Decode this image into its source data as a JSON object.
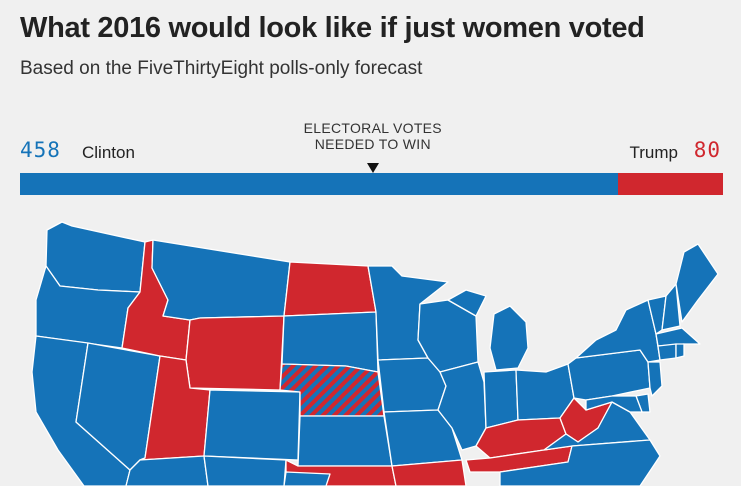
{
  "header": {
    "title": "What 2016 would look like if just women voted",
    "subtitle": "Based on the FiveThirtyEight polls-only forecast"
  },
  "electoral": {
    "needed_label_line1": "ELECTORAL VOTES",
    "needed_label_line2": "NEEDED TO WIN",
    "total": 538,
    "needed": 270,
    "clinton": {
      "name": "Clinton",
      "votes": "458",
      "color": "#1573b8"
    },
    "trump": {
      "name": "Trump",
      "votes": "80",
      "color": "#d0272e"
    }
  },
  "map": {
    "colors": {
      "clinton": "#1573b8",
      "trump": "#d0272e",
      "border": "#ffffff"
    },
    "states": [
      {
        "name": "WA",
        "winner": "clinton"
      },
      {
        "name": "OR",
        "winner": "clinton"
      },
      {
        "name": "CA",
        "winner": "clinton"
      },
      {
        "name": "NV",
        "winner": "clinton"
      },
      {
        "name": "ID",
        "winner": "trump"
      },
      {
        "name": "MT",
        "winner": "clinton"
      },
      {
        "name": "WY",
        "winner": "trump"
      },
      {
        "name": "UT",
        "winner": "trump"
      },
      {
        "name": "AZ",
        "winner": "clinton"
      },
      {
        "name": "CO",
        "winner": "clinton"
      },
      {
        "name": "NM",
        "winner": "clinton"
      },
      {
        "name": "ND",
        "winner": "trump"
      },
      {
        "name": "SD",
        "winner": "clinton"
      },
      {
        "name": "NE",
        "winner": "split"
      },
      {
        "name": "KS",
        "winner": "clinton"
      },
      {
        "name": "OK",
        "winner": "trump"
      },
      {
        "name": "TX",
        "winner": "clinton"
      },
      {
        "name": "MN",
        "winner": "clinton"
      },
      {
        "name": "IA",
        "winner": "clinton"
      },
      {
        "name": "MO",
        "winner": "clinton"
      },
      {
        "name": "AR",
        "winner": "trump"
      },
      {
        "name": "WI",
        "winner": "clinton"
      },
      {
        "name": "IL",
        "winner": "clinton"
      },
      {
        "name": "MI",
        "winner": "clinton"
      },
      {
        "name": "IN",
        "winner": "clinton"
      },
      {
        "name": "OH",
        "winner": "clinton"
      },
      {
        "name": "KY",
        "winner": "trump"
      },
      {
        "name": "TN",
        "winner": "trump"
      },
      {
        "name": "WV",
        "winner": "trump"
      },
      {
        "name": "VA",
        "winner": "clinton"
      },
      {
        "name": "NC",
        "winner": "clinton"
      },
      {
        "name": "PA",
        "winner": "clinton"
      },
      {
        "name": "NY",
        "winner": "clinton"
      },
      {
        "name": "VT",
        "winner": "clinton"
      },
      {
        "name": "NH",
        "winner": "clinton"
      },
      {
        "name": "ME",
        "winner": "clinton"
      },
      {
        "name": "MA",
        "winner": "clinton"
      },
      {
        "name": "CT",
        "winner": "clinton"
      },
      {
        "name": "RI",
        "winner": "clinton"
      },
      {
        "name": "NJ",
        "winner": "clinton"
      },
      {
        "name": "DE",
        "winner": "clinton"
      },
      {
        "name": "MD",
        "winner": "clinton"
      }
    ]
  }
}
